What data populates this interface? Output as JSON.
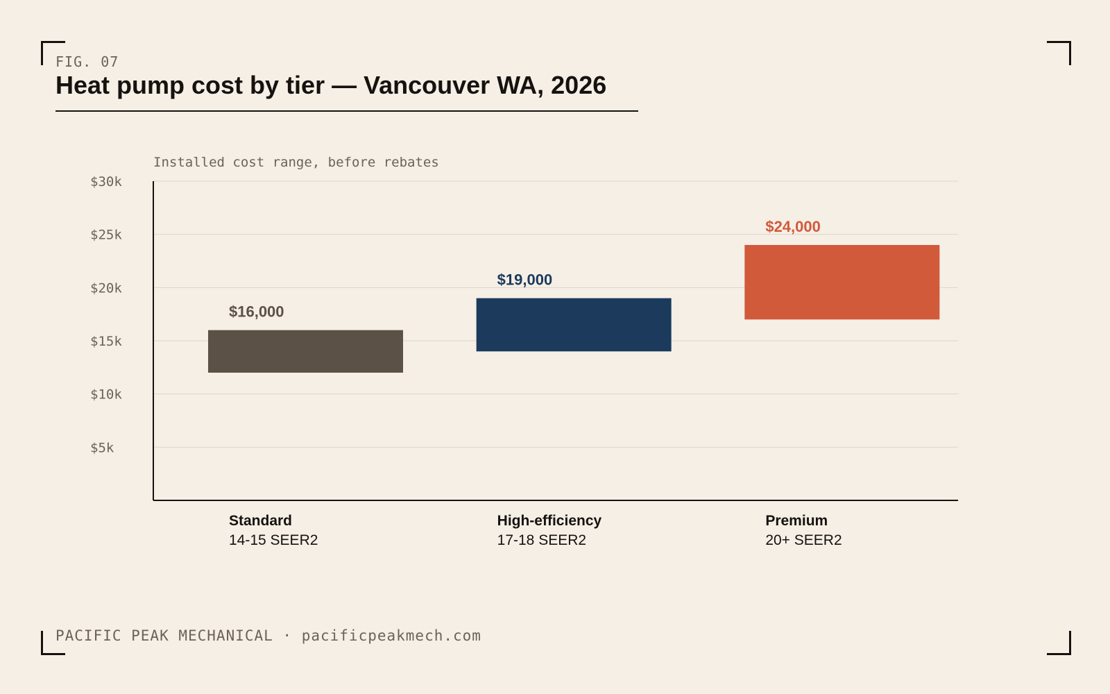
{
  "figure": {
    "label": "FIG. 07",
    "title": "Heat pump cost by tier — Vancouver WA, 2026"
  },
  "footer": {
    "text": "PACIFIC PEAK MECHANICAL · pacificpeakmech.com"
  },
  "chart_data": {
    "type": "bar",
    "subtitle": "Installed cost range, before rebates",
    "y_ticks": [
      "$5k",
      "$10k",
      "$15k",
      "$20k",
      "$25k",
      "$30k"
    ],
    "y_tick_values": [
      5000,
      10000,
      15000,
      20000,
      25000,
      30000
    ],
    "ylim": [
      0,
      30000
    ],
    "grid": true,
    "categories": [
      "Standard",
      "High-efficiency",
      "Premium"
    ],
    "category_sublabels": [
      "14-15 SEER2",
      "17-18 SEER2",
      "20+ SEER2"
    ],
    "ranges": [
      {
        "low": 12000,
        "high": 16000,
        "label": "$16,000",
        "color": "#5c5146"
      },
      {
        "low": 14000,
        "high": 19000,
        "label": "$19,000",
        "color": "#1b3a5c"
      },
      {
        "low": 17000,
        "high": 24000,
        "label": "$24,000",
        "color": "#d15a3b"
      }
    ]
  }
}
